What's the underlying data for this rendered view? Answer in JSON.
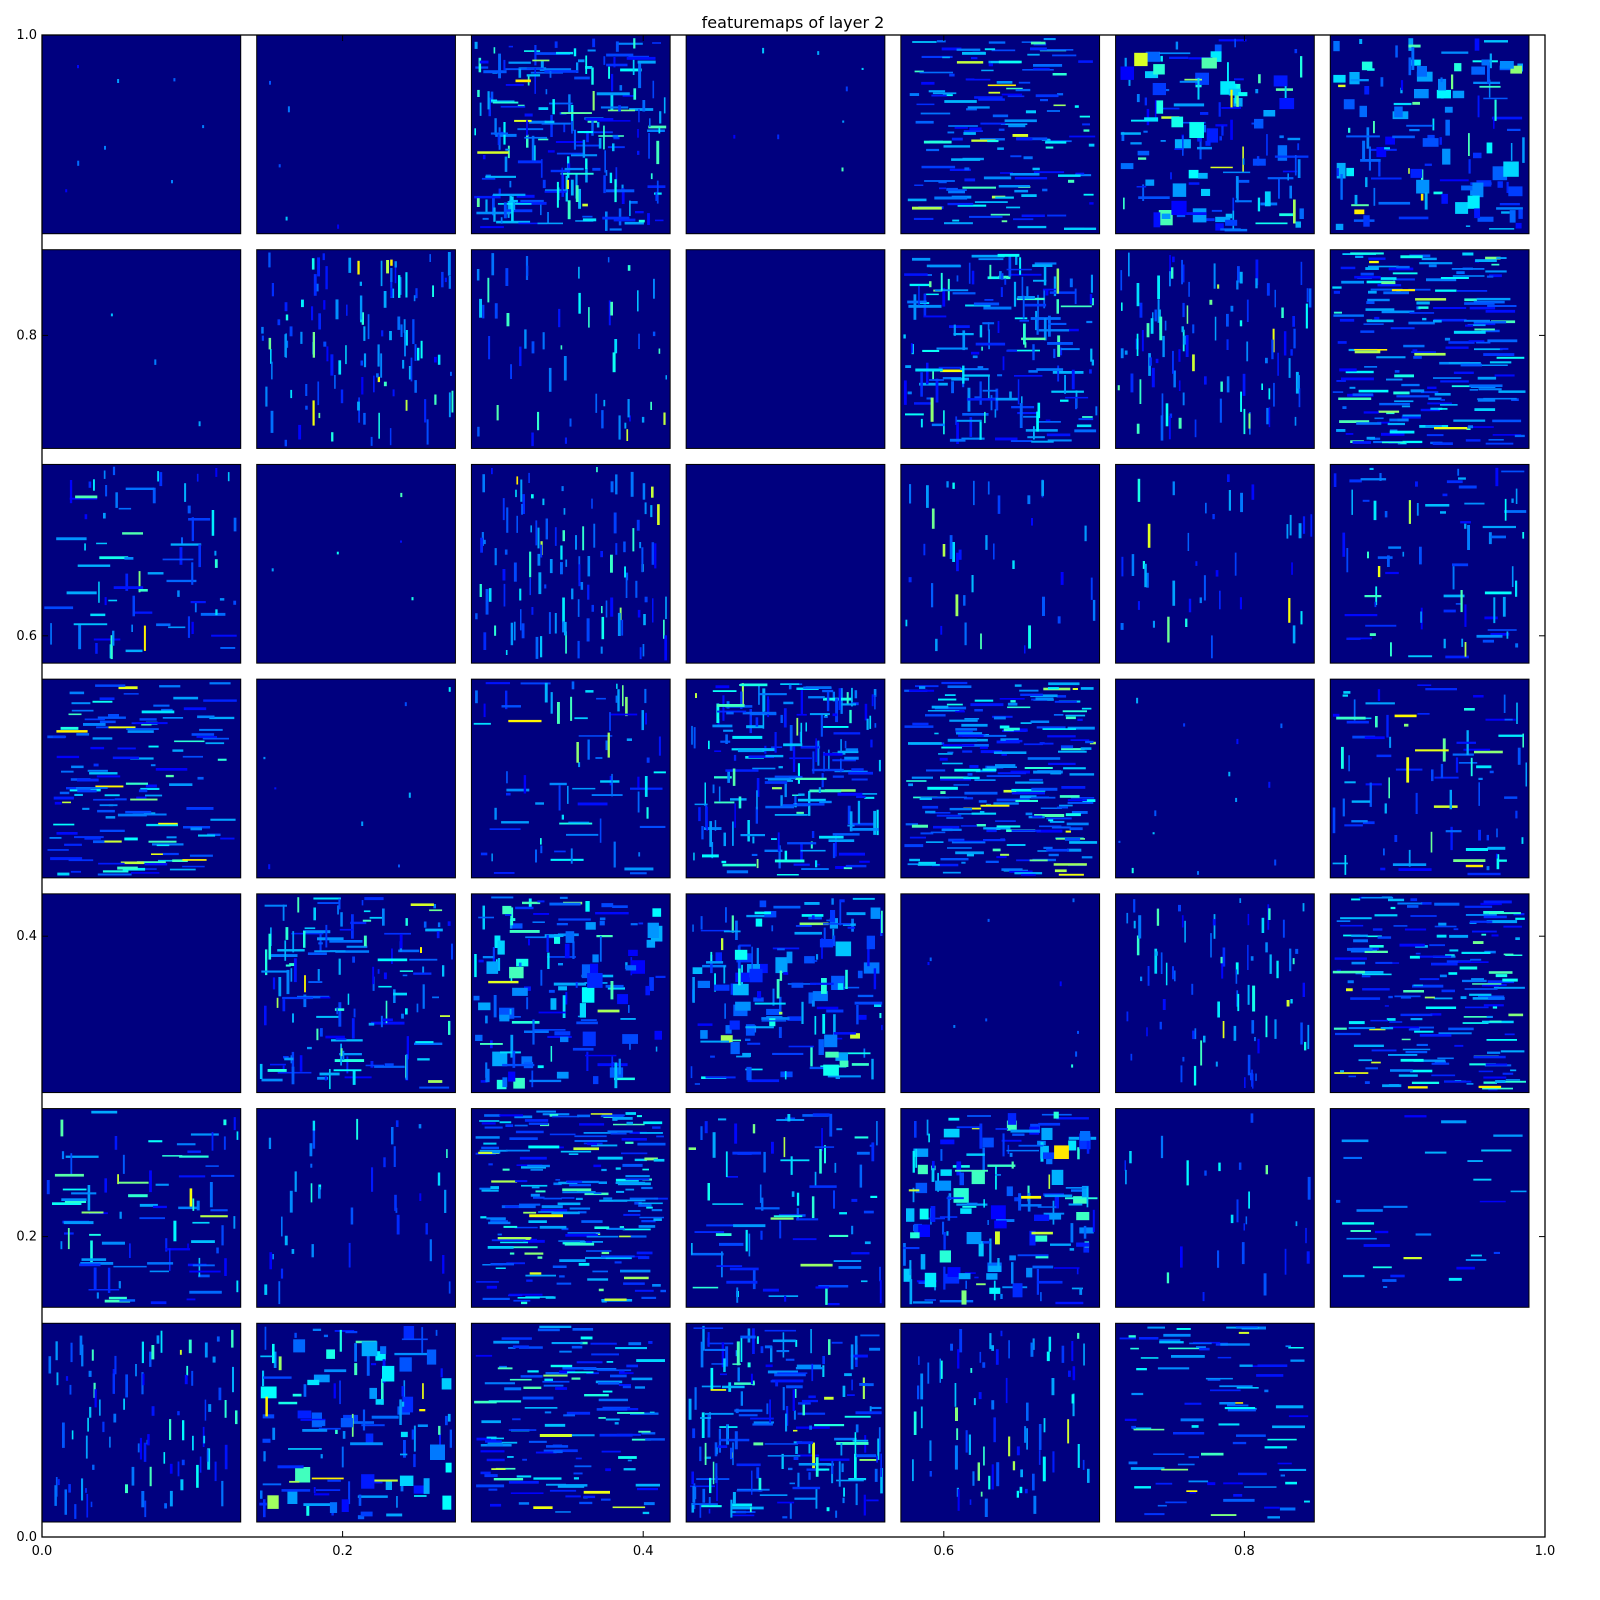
{
  "chart_data": {
    "type": "heatmap",
    "title": "featuremaps of layer 2",
    "xlabel": "",
    "ylabel": "",
    "xlim": [
      0.0,
      1.0
    ],
    "ylim": [
      0.0,
      1.0
    ],
    "x_ticks": [
      "0.0",
      "0.2",
      "0.4",
      "0.6",
      "0.8",
      "1.0"
    ],
    "y_ticks": [
      "0.0",
      "0.2",
      "0.4",
      "0.6",
      "0.8",
      "1.0"
    ],
    "grid": false,
    "colormap": "jet",
    "background_color": "#00007f",
    "grid_rows": 7,
    "grid_cols": 7,
    "panel_count": 48,
    "panels": [
      {
        "activity": 0.03,
        "style": "sparse"
      },
      {
        "activity": 0.02,
        "style": "sparse"
      },
      {
        "activity": 0.9,
        "style": "dense-mixed"
      },
      {
        "activity": 0.03,
        "style": "sparse"
      },
      {
        "activity": 0.6,
        "style": "horizontal"
      },
      {
        "activity": 0.55,
        "style": "blocks"
      },
      {
        "activity": 0.5,
        "style": "blocks"
      },
      {
        "activity": 0.01,
        "style": "sparse"
      },
      {
        "activity": 0.45,
        "style": "vertical"
      },
      {
        "activity": 0.2,
        "style": "vertical"
      },
      {
        "activity": 0.0,
        "style": "empty"
      },
      {
        "activity": 0.75,
        "style": "dense-mixed"
      },
      {
        "activity": 0.4,
        "style": "vertical"
      },
      {
        "activity": 0.8,
        "style": "horizontal"
      },
      {
        "activity": 0.3,
        "style": "mixed"
      },
      {
        "activity": 0.02,
        "style": "sparse"
      },
      {
        "activity": 0.45,
        "style": "vertical"
      },
      {
        "activity": 0.0,
        "style": "empty"
      },
      {
        "activity": 0.15,
        "style": "vertical"
      },
      {
        "activity": 0.15,
        "style": "vertical"
      },
      {
        "activity": 0.3,
        "style": "mixed"
      },
      {
        "activity": 0.55,
        "style": "horizontal"
      },
      {
        "activity": 0.03,
        "style": "sparse"
      },
      {
        "activity": 0.3,
        "style": "mixed"
      },
      {
        "activity": 0.85,
        "style": "dense-mixed"
      },
      {
        "activity": 0.95,
        "style": "horizontal"
      },
      {
        "activity": 0.05,
        "style": "sparse"
      },
      {
        "activity": 0.35,
        "style": "mixed"
      },
      {
        "activity": 0.0,
        "style": "empty"
      },
      {
        "activity": 0.6,
        "style": "mixed"
      },
      {
        "activity": 0.6,
        "style": "blocks"
      },
      {
        "activity": 0.65,
        "style": "blocks"
      },
      {
        "activity": 0.04,
        "style": "sparse"
      },
      {
        "activity": 0.3,
        "style": "vertical"
      },
      {
        "activity": 0.75,
        "style": "horizontal"
      },
      {
        "activity": 0.35,
        "style": "mixed"
      },
      {
        "activity": 0.15,
        "style": "vertical"
      },
      {
        "activity": 0.85,
        "style": "horizontal"
      },
      {
        "activity": 0.35,
        "style": "mixed"
      },
      {
        "activity": 0.7,
        "style": "blocks"
      },
      {
        "activity": 0.1,
        "style": "vertical"
      },
      {
        "activity": 0.12,
        "style": "horizontal"
      },
      {
        "activity": 0.35,
        "style": "vertical"
      },
      {
        "activity": 0.5,
        "style": "blocks"
      },
      {
        "activity": 0.55,
        "style": "horizontal"
      },
      {
        "activity": 0.8,
        "style": "dense-mixed"
      },
      {
        "activity": 0.3,
        "style": "vertical"
      },
      {
        "activity": 0.35,
        "style": "horizontal"
      }
    ]
  }
}
